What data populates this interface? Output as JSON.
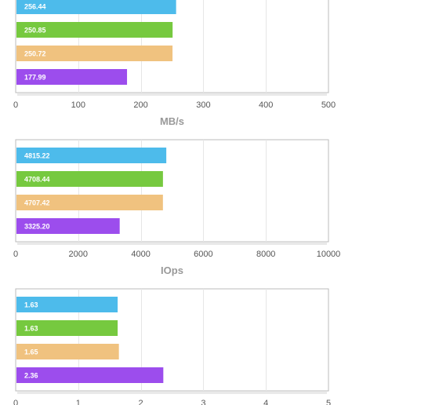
{
  "chart_data": [
    {
      "type": "bar",
      "orientation": "horizontal",
      "xlabel": "MB/s",
      "xlim": [
        0,
        500
      ],
      "xticks": [
        0,
        100,
        200,
        300,
        400,
        500
      ],
      "tick_labels": [
        "0",
        "100",
        "200",
        "300",
        "400",
        "500"
      ],
      "values": [
        256.44,
        250.85,
        250.72,
        177.99
      ],
      "value_labels": [
        "256.44",
        "250.85",
        "250.72",
        "177.99"
      ],
      "colors": [
        "#4dbbeb",
        "#76c93f",
        "#f0c27f",
        "#9c4ded"
      ],
      "grid": true,
      "legend": "none"
    },
    {
      "type": "bar",
      "orientation": "horizontal",
      "xlabel": "IOps",
      "xlim": [
        0,
        10000
      ],
      "xticks": [
        0,
        2000,
        4000,
        6000,
        8000,
        10000
      ],
      "tick_labels": [
        "0",
        "2000",
        "4000",
        "6000",
        "8000",
        "10000"
      ],
      "values": [
        4815.22,
        4708.44,
        4707.42,
        3325.2
      ],
      "value_labels": [
        "4815.22",
        "4708.44",
        "4707.42",
        "3325.20"
      ],
      "colors": [
        "#4dbbeb",
        "#76c93f",
        "#f0c27f",
        "#9c4ded"
      ],
      "grid": true,
      "legend": "none"
    },
    {
      "type": "bar",
      "orientation": "horizontal",
      "xlabel": "",
      "xlim": [
        0,
        5
      ],
      "xticks": [
        0,
        1,
        2,
        3,
        4,
        5
      ],
      "tick_labels": [
        "0",
        "1",
        "2",
        "3",
        "4",
        "5"
      ],
      "values": [
        1.63,
        1.63,
        1.65,
        2.36
      ],
      "value_labels": [
        "1.63",
        "1.63",
        "1.65",
        "2.36"
      ],
      "colors": [
        "#4dbbeb",
        "#76c93f",
        "#f0c27f",
        "#9c4ded"
      ],
      "grid": true,
      "legend": "none"
    }
  ]
}
